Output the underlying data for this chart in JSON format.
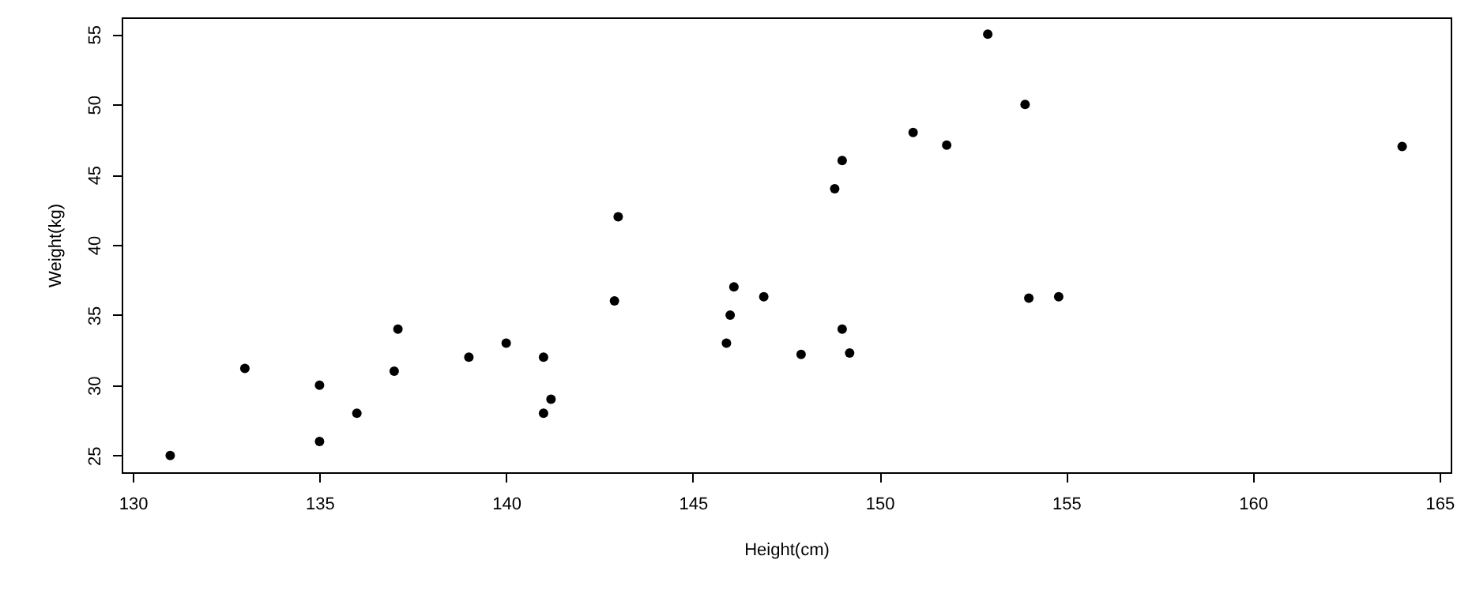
{
  "chart_data": {
    "type": "scatter",
    "xlabel": "Height(cm)",
    "ylabel": "Weight(kg)",
    "x": [
      131,
      133,
      135,
      135,
      136,
      137,
      137.1,
      139,
      140,
      141,
      141.2,
      141,
      142.9,
      143,
      145.9,
      146,
      146.1,
      146.9,
      147.9,
      148.8,
      149,
      149,
      149.2,
      150.9,
      151.8,
      152.9,
      153.9,
      154,
      154.8,
      164
    ],
    "series": [
      {
        "color": "#000000",
        "values": [
          25,
          31.2,
          30,
          26,
          28,
          31,
          34,
          32,
          33,
          32,
          29,
          28,
          36,
          42,
          33,
          35,
          37,
          36.3,
          32.2,
          44,
          46,
          34,
          32.3,
          48,
          47.1,
          55,
          50,
          36.2,
          36.3,
          47
        ]
      }
    ],
    "xlim": [
      129.7,
      165.3
    ],
    "ylim": [
      23.8,
      56.2
    ],
    "xticks": [
      130,
      135,
      140,
      145,
      150,
      155,
      160,
      165
    ],
    "yticks": [
      25,
      30,
      35,
      40,
      45,
      50,
      55
    ],
    "grid": false,
    "marker": "circle"
  }
}
